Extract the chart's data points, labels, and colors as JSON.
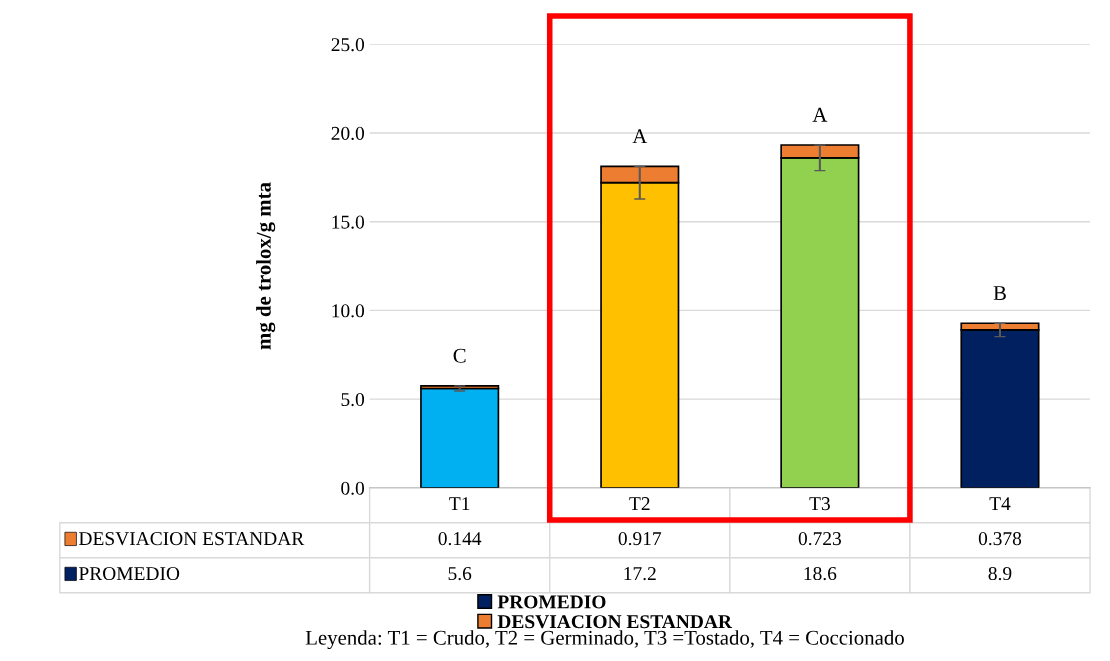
{
  "chart_data": {
    "type": "bar",
    "stacked": true,
    "ylabel": "mg de trolox/g mta",
    "categories": [
      "T1",
      "T2",
      "T3",
      "T4"
    ],
    "series": [
      {
        "name": "PROMEDIO",
        "color": "#002060",
        "colors": [
          "#00b0f0",
          "#ffc000",
          "#92d050",
          "#002060"
        ],
        "values": [
          5.6,
          17.2,
          18.6,
          8.9
        ],
        "errors": [
          0.144,
          0.917,
          0.723,
          0.378
        ]
      },
      {
        "name": "DESVIACION ESTANDAR",
        "color": "#ed7d31",
        "values": [
          0.144,
          0.917,
          0.723,
          0.378
        ]
      }
    ],
    "ylim": [
      0,
      25
    ],
    "yticks": [
      {
        "value": 0,
        "label": "0.0"
      },
      {
        "value": 5,
        "label": "5.0"
      },
      {
        "value": 10,
        "label": "10.0"
      },
      {
        "value": 15,
        "label": "15.0"
      },
      {
        "value": 20,
        "label": "20.0"
      },
      {
        "value": 25,
        "label": "25.0"
      }
    ],
    "grid": "y",
    "legend": "bottom",
    "data_labels": true,
    "annotations": [
      "C",
      "A",
      "A",
      "B",
      "Leyenda: T1 = Crudo, T2 = Germinado, T3 =Tostado, T4 = Coccionado"
    ]
  }
}
